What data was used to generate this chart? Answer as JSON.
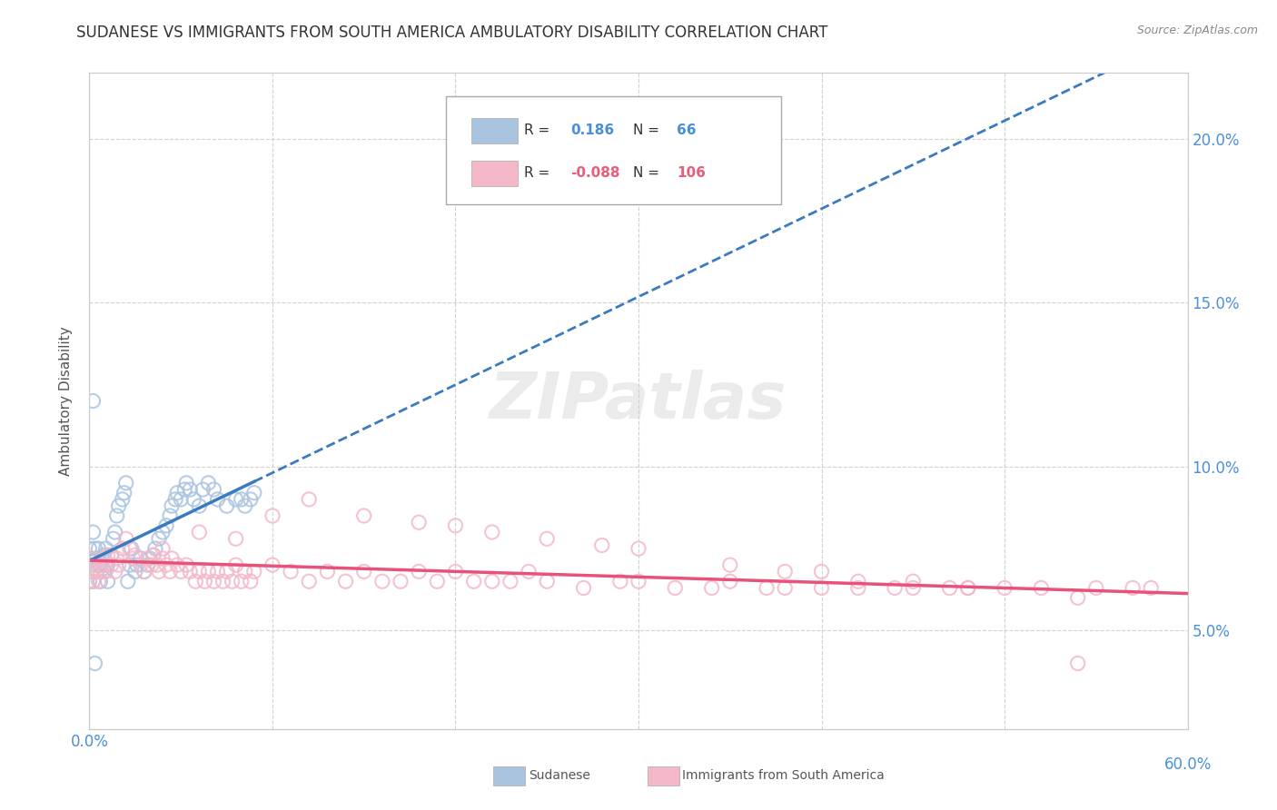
{
  "title": "SUDANESE VS IMMIGRANTS FROM SOUTH AMERICA AMBULATORY DISABILITY CORRELATION CHART",
  "source": "Source: ZipAtlas.com",
  "ylabel_label": "Ambulatory Disability",
  "x_min": 0.0,
  "x_max": 0.6,
  "y_min": 0.02,
  "y_max": 0.22,
  "x_ticks": [
    0.0,
    0.1,
    0.2,
    0.3,
    0.4,
    0.5,
    0.6
  ],
  "y_ticks": [
    0.05,
    0.1,
    0.15,
    0.2
  ],
  "legend_blue_R": "0.186",
  "legend_blue_N": "66",
  "legend_pink_R": "-0.088",
  "legend_pink_N": "106",
  "blue_color": "#aac4e0",
  "pink_color": "#f4b8c8",
  "blue_line_color": "#3a7abf",
  "pink_line_color": "#e8527a",
  "watermark": "ZIPatlas",
  "legend_label_blue": "Sudanese",
  "legend_label_pink": "Immigrants from South America",
  "blue_scatter_x": [
    0.0,
    0.0,
    0.0,
    0.001,
    0.001,
    0.002,
    0.002,
    0.003,
    0.003,
    0.004,
    0.004,
    0.005,
    0.005,
    0.006,
    0.006,
    0.007,
    0.008,
    0.008,
    0.009,
    0.009,
    0.01,
    0.01,
    0.012,
    0.013,
    0.014,
    0.015,
    0.016,
    0.018,
    0.019,
    0.02,
    0.021,
    0.022,
    0.023,
    0.025,
    0.026,
    0.028,
    0.03,
    0.032,
    0.033,
    0.035,
    0.036,
    0.038,
    0.04,
    0.042,
    0.044,
    0.045,
    0.047,
    0.048,
    0.05,
    0.052,
    0.053,
    0.055,
    0.057,
    0.06,
    0.062,
    0.065,
    0.068,
    0.07,
    0.075,
    0.08,
    0.083,
    0.085,
    0.088,
    0.09,
    0.002,
    0.003
  ],
  "blue_scatter_y": [
    0.065,
    0.07,
    0.075,
    0.068,
    0.072,
    0.065,
    0.08,
    0.07,
    0.075,
    0.068,
    0.072,
    0.07,
    0.075,
    0.065,
    0.07,
    0.072,
    0.068,
    0.073,
    0.07,
    0.075,
    0.065,
    0.07,
    0.073,
    0.078,
    0.08,
    0.085,
    0.088,
    0.09,
    0.092,
    0.095,
    0.065,
    0.07,
    0.075,
    0.068,
    0.07,
    0.072,
    0.068,
    0.07,
    0.072,
    0.073,
    0.075,
    0.078,
    0.08,
    0.082,
    0.085,
    0.088,
    0.09,
    0.092,
    0.09,
    0.093,
    0.095,
    0.093,
    0.09,
    0.088,
    0.093,
    0.095,
    0.093,
    0.09,
    0.088,
    0.09,
    0.09,
    0.088,
    0.09,
    0.092,
    0.12,
    0.04
  ],
  "pink_scatter_x": [
    0.0,
    0.0,
    0.001,
    0.001,
    0.002,
    0.003,
    0.004,
    0.005,
    0.006,
    0.007,
    0.008,
    0.009,
    0.01,
    0.012,
    0.014,
    0.015,
    0.016,
    0.018,
    0.02,
    0.022,
    0.024,
    0.025,
    0.028,
    0.03,
    0.032,
    0.034,
    0.035,
    0.037,
    0.038,
    0.04,
    0.042,
    0.044,
    0.045,
    0.048,
    0.05,
    0.053,
    0.055,
    0.058,
    0.06,
    0.063,
    0.065,
    0.068,
    0.07,
    0.073,
    0.075,
    0.078,
    0.08,
    0.083,
    0.085,
    0.088,
    0.09,
    0.1,
    0.11,
    0.12,
    0.13,
    0.14,
    0.15,
    0.16,
    0.17,
    0.18,
    0.19,
    0.2,
    0.21,
    0.22,
    0.23,
    0.24,
    0.25,
    0.27,
    0.29,
    0.3,
    0.32,
    0.34,
    0.35,
    0.37,
    0.38,
    0.4,
    0.42,
    0.44,
    0.45,
    0.47,
    0.48,
    0.5,
    0.52,
    0.54,
    0.55,
    0.57,
    0.58,
    0.04,
    0.06,
    0.08,
    0.1,
    0.12,
    0.15,
    0.18,
    0.2,
    0.22,
    0.25,
    0.28,
    0.3,
    0.35,
    0.38,
    0.4,
    0.42,
    0.45,
    0.48,
    0.54
  ],
  "pink_scatter_y": [
    0.065,
    0.07,
    0.068,
    0.072,
    0.065,
    0.07,
    0.068,
    0.065,
    0.068,
    0.07,
    0.072,
    0.068,
    0.073,
    0.07,
    0.068,
    0.072,
    0.07,
    0.075,
    0.078,
    0.075,
    0.072,
    0.073,
    0.07,
    0.068,
    0.072,
    0.07,
    0.073,
    0.07,
    0.068,
    0.072,
    0.07,
    0.068,
    0.072,
    0.07,
    0.068,
    0.07,
    0.068,
    0.065,
    0.068,
    0.065,
    0.068,
    0.065,
    0.068,
    0.065,
    0.068,
    0.065,
    0.07,
    0.065,
    0.068,
    0.065,
    0.068,
    0.07,
    0.068,
    0.065,
    0.068,
    0.065,
    0.068,
    0.065,
    0.065,
    0.068,
    0.065,
    0.068,
    0.065,
    0.065,
    0.065,
    0.068,
    0.065,
    0.063,
    0.065,
    0.065,
    0.063,
    0.063,
    0.065,
    0.063,
    0.063,
    0.063,
    0.063,
    0.063,
    0.063,
    0.063,
    0.063,
    0.063,
    0.063,
    0.06,
    0.063,
    0.063,
    0.063,
    0.075,
    0.08,
    0.078,
    0.085,
    0.09,
    0.085,
    0.083,
    0.082,
    0.08,
    0.078,
    0.076,
    0.075,
    0.07,
    0.068,
    0.068,
    0.065,
    0.065,
    0.063,
    0.04
  ]
}
